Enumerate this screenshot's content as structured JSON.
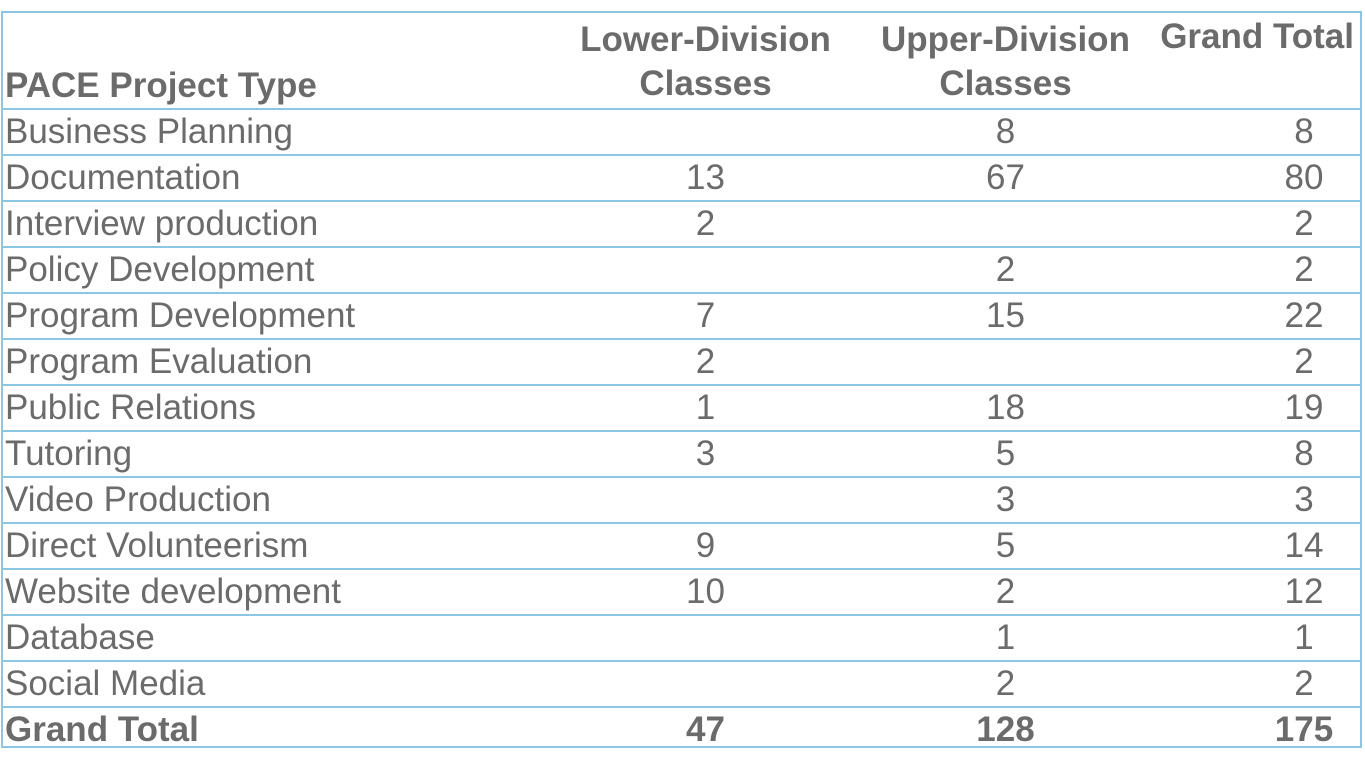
{
  "table": {
    "headers": {
      "project_type": "PACE Project Type",
      "lower_line1": "Lower-Division",
      "lower_line2": "Classes",
      "upper_line1": "Upper-Division",
      "upper_line2": "Classes",
      "grand_total": "Grand Total"
    },
    "rows": [
      {
        "type": "Business Planning",
        "lower": "",
        "upper": "8",
        "total": "8"
      },
      {
        "type": "Documentation",
        "lower": "13",
        "upper": "67",
        "total": "80"
      },
      {
        "type": "Interview production",
        "lower": "2",
        "upper": "",
        "total": "2"
      },
      {
        "type": "Policy Development",
        "lower": "",
        "upper": "2",
        "total": "2"
      },
      {
        "type": "Program Development",
        "lower": "7",
        "upper": "15",
        "total": "22"
      },
      {
        "type": "Program Evaluation",
        "lower": "2",
        "upper": "",
        "total": "2"
      },
      {
        "type": "Public Relations",
        "lower": "1",
        "upper": "18",
        "total": "19"
      },
      {
        "type": "Tutoring",
        "lower": "3",
        "upper": "5",
        "total": "8"
      },
      {
        "type": "Video Production",
        "lower": "",
        "upper": "3",
        "total": "3"
      },
      {
        "type": "Direct Volunteerism",
        "lower": "9",
        "upper": "5",
        "total": "14"
      },
      {
        "type": "Website development",
        "lower": "10",
        "upper": "2",
        "total": "12"
      },
      {
        "type": "Database",
        "lower": "",
        "upper": "1",
        "total": "1"
      },
      {
        "type": "Social Media",
        "lower": "",
        "upper": "2",
        "total": "2"
      }
    ],
    "footer": {
      "label": "Grand Total",
      "lower": "47",
      "upper": "128",
      "total": "175"
    }
  },
  "colors": {
    "border": "#8cc6e0",
    "text": "#6b6b6b"
  }
}
